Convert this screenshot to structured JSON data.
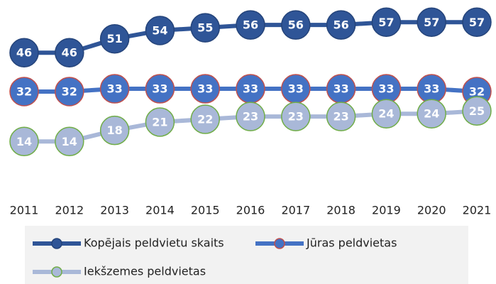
{
  "chart_data": {
    "type": "line",
    "x": [
      2011,
      2012,
      2013,
      2014,
      2015,
      2016,
      2017,
      2018,
      2019,
      2020,
      2021
    ],
    "ylim": [
      0,
      65
    ],
    "series": [
      {
        "name": "Kopējais peldvietu skaits",
        "color": "#2f5597",
        "marker_fill": "#2f5597",
        "marker_edge": "#25447a",
        "values": [
          46,
          46,
          51,
          54,
          55,
          56,
          56,
          56,
          57,
          57,
          57
        ]
      },
      {
        "name": "Jūras peldvietas",
        "color": "#4472c4",
        "marker_fill": "#4472c4",
        "marker_edge": "#c0504d",
        "values": [
          32,
          32,
          33,
          33,
          33,
          33,
          33,
          33,
          33,
          33,
          32
        ]
      },
      {
        "name": "Iekšzemes peldvietas",
        "color": "#a9b8d8",
        "marker_fill": "#a9b8d8",
        "marker_edge": "#70ad47",
        "values": [
          14,
          14,
          18,
          21,
          22,
          23,
          23,
          23,
          24,
          24,
          25
        ]
      }
    ]
  }
}
